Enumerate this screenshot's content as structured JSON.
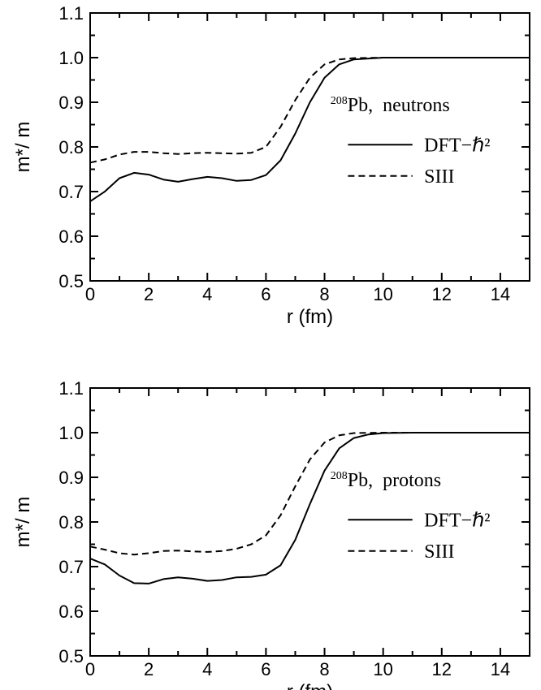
{
  "chart_data": [
    {
      "type": "line",
      "xlabel": "r (fm)",
      "ylabel": "m*/ m",
      "xlim": [
        0,
        15
      ],
      "ylim": [
        0.5,
        1.1
      ],
      "x_ticks": [
        "0",
        "2",
        "4",
        "6",
        "8",
        "10",
        "12",
        "14"
      ],
      "y_ticks": [
        "0.5",
        "0.6",
        "0.7",
        "0.8",
        "0.9",
        "1.0",
        "1.1"
      ],
      "grid": false,
      "annotation": {
        "isotope_mass": "208",
        "element": "Pb,",
        "particle": "neutrons"
      },
      "legend_placement": "right",
      "series": [
        {
          "name": "DFT−ℏ²",
          "style": "solid",
          "points": [
            [
              0,
              0.678
            ],
            [
              0.5,
              0.7
            ],
            [
              1.0,
              0.73
            ],
            [
              1.5,
              0.742
            ],
            [
              2.0,
              0.738
            ],
            [
              2.5,
              0.727
            ],
            [
              3.0,
              0.722
            ],
            [
              3.5,
              0.728
            ],
            [
              4.0,
              0.733
            ],
            [
              4.5,
              0.73
            ],
            [
              5.0,
              0.724
            ],
            [
              5.5,
              0.726
            ],
            [
              6.0,
              0.737
            ],
            [
              6.5,
              0.77
            ],
            [
              7.0,
              0.83
            ],
            [
              7.5,
              0.9
            ],
            [
              8.0,
              0.955
            ],
            [
              8.5,
              0.985
            ],
            [
              9.0,
              0.996
            ],
            [
              10.0,
              1.0
            ],
            [
              15.0,
              1.0
            ]
          ]
        },
        {
          "name": "SIII",
          "style": "dashed",
          "points": [
            [
              0,
              0.765
            ],
            [
              0.5,
              0.772
            ],
            [
              1.0,
              0.783
            ],
            [
              1.5,
              0.789
            ],
            [
              2.0,
              0.789
            ],
            [
              2.5,
              0.786
            ],
            [
              3.0,
              0.784
            ],
            [
              3.5,
              0.786
            ],
            [
              4.0,
              0.787
            ],
            [
              4.5,
              0.786
            ],
            [
              5.0,
              0.785
            ],
            [
              5.5,
              0.787
            ],
            [
              6.0,
              0.8
            ],
            [
              6.5,
              0.845
            ],
            [
              7.0,
              0.905
            ],
            [
              7.5,
              0.955
            ],
            [
              8.0,
              0.985
            ],
            [
              8.5,
              0.996
            ],
            [
              9.0,
              0.999
            ],
            [
              10.0,
              1.0
            ],
            [
              15.0,
              1.0
            ]
          ]
        }
      ]
    },
    {
      "type": "line",
      "xlabel": "r (fm)",
      "ylabel": "m*/ m",
      "xlim": [
        0,
        15
      ],
      "ylim": [
        0.5,
        1.1
      ],
      "x_ticks": [
        "0",
        "2",
        "4",
        "6",
        "8",
        "10",
        "12",
        "14"
      ],
      "y_ticks": [
        "0.5",
        "0.6",
        "0.7",
        "0.8",
        "0.9",
        "1.0",
        "1.1"
      ],
      "grid": false,
      "annotation": {
        "isotope_mass": "208",
        "element": "Pb,",
        "particle": "protons"
      },
      "legend_placement": "right",
      "series": [
        {
          "name": "DFT−ℏ²",
          "style": "solid",
          "points": [
            [
              0,
              0.718
            ],
            [
              0.5,
              0.705
            ],
            [
              1.0,
              0.68
            ],
            [
              1.5,
              0.663
            ],
            [
              2.0,
              0.662
            ],
            [
              2.5,
              0.672
            ],
            [
              3.0,
              0.676
            ],
            [
              3.5,
              0.673
            ],
            [
              4.0,
              0.668
            ],
            [
              4.5,
              0.67
            ],
            [
              5.0,
              0.676
            ],
            [
              5.5,
              0.677
            ],
            [
              6.0,
              0.682
            ],
            [
              6.5,
              0.703
            ],
            [
              7.0,
              0.76
            ],
            [
              7.5,
              0.84
            ],
            [
              8.0,
              0.915
            ],
            [
              8.5,
              0.965
            ],
            [
              9.0,
              0.988
            ],
            [
              9.5,
              0.996
            ],
            [
              10.0,
              0.999
            ],
            [
              11.0,
              1.0
            ],
            [
              15.0,
              1.0
            ]
          ]
        },
        {
          "name": "SIII",
          "style": "dashed",
          "points": [
            [
              0,
              0.745
            ],
            [
              0.5,
              0.738
            ],
            [
              1.0,
              0.73
            ],
            [
              1.5,
              0.727
            ],
            [
              2.0,
              0.73
            ],
            [
              2.5,
              0.735
            ],
            [
              3.0,
              0.736
            ],
            [
              3.5,
              0.734
            ],
            [
              4.0,
              0.733
            ],
            [
              4.5,
              0.735
            ],
            [
              5.0,
              0.74
            ],
            [
              5.5,
              0.75
            ],
            [
              6.0,
              0.77
            ],
            [
              6.5,
              0.815
            ],
            [
              7.0,
              0.88
            ],
            [
              7.5,
              0.94
            ],
            [
              8.0,
              0.978
            ],
            [
              8.5,
              0.994
            ],
            [
              9.0,
              0.999
            ],
            [
              10.0,
              1.0
            ],
            [
              15.0,
              1.0
            ]
          ]
        }
      ]
    }
  ]
}
